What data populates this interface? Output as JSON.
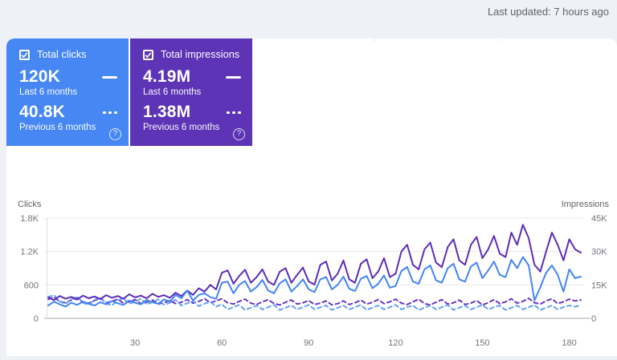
{
  "header": {
    "last_updated": "Last updated: 7 hours ago"
  },
  "cards": [
    {
      "label": "Total clicks",
      "checked": true,
      "color": "#4687f4",
      "current": {
        "value": "120K",
        "period": "Last 6 months"
      },
      "previous": {
        "value": "40.8K",
        "period": "Previous 6 months"
      },
      "help": "?"
    },
    {
      "label": "Total impressions",
      "checked": true,
      "color": "#5c34b5",
      "current": {
        "value": "4.19M",
        "period": "Last 6 months"
      },
      "previous": {
        "value": "1.38M",
        "period": "Previous 6 months"
      },
      "help": "?"
    }
  ],
  "chart_data": {
    "type": "line",
    "x_step_days": 2,
    "x_ticks": [
      30,
      60,
      90,
      120,
      150,
      180
    ],
    "left_axis": {
      "title": "Clicks",
      "ticks": [
        "1.8K",
        "1.2K",
        "600",
        "0"
      ],
      "max": 1800,
      "min": 0
    },
    "right_axis": {
      "title": "Impressions",
      "ticks": [
        "45K",
        "30K",
        "15K",
        "0"
      ],
      "max": 45000,
      "min": 0
    },
    "grid": true,
    "legend_position": "none",
    "series": [
      {
        "name": "Impressions - previous 6 months",
        "axis": "right",
        "style": "dashed",
        "color": "#6b35c4",
        "values": [
          8500,
          9500,
          7500,
          7000,
          8200,
          9200,
          7200,
          6800,
          8000,
          9000,
          7000,
          7600,
          8600,
          6800,
          7400,
          8400,
          6600,
          7200,
          8200,
          6400,
          7000,
          8000,
          6600,
          7200,
          8400,
          6800,
          7600,
          8800,
          7000,
          7800,
          8800,
          7000,
          6400,
          7600,
          8600,
          6800,
          6200,
          7400,
          8400,
          6600,
          6000,
          7200,
          8200,
          6400,
          7000,
          8000,
          6200,
          6800,
          7800,
          6000,
          6600,
          7800,
          6200,
          7000,
          8200,
          6400,
          7200,
          8400,
          6600,
          7400,
          8600,
          6800,
          6200,
          7400,
          8600,
          6600,
          6000,
          7200,
          8400,
          6400,
          7000,
          8200,
          6200,
          6800,
          8000,
          6000,
          7000,
          8400,
          6600,
          7400,
          8800,
          6800,
          7600,
          9000,
          7000,
          6400,
          7800,
          8800,
          6600,
          7400,
          8600,
          7800,
          8200
        ]
      },
      {
        "name": "Clicks - previous 6 months",
        "axis": "left",
        "style": "dashed",
        "color": "#66a0f5",
        "values": [
          380,
          420,
          300,
          260,
          340,
          390,
          280,
          240,
          330,
          380,
          270,
          230,
          320,
          360,
          260,
          300,
          350,
          250,
          290,
          340,
          240,
          280,
          330,
          230,
          270,
          310,
          220,
          260,
          300,
          210,
          250,
          160,
          200,
          240,
          150,
          190,
          230,
          160,
          200,
          240,
          150,
          190,
          230,
          160,
          200,
          240,
          160,
          200,
          230,
          150,
          190,
          230,
          160,
          200,
          240,
          150,
          190,
          230,
          160,
          200,
          240,
          160,
          200,
          230,
          150,
          190,
          230,
          160,
          200,
          240,
          150,
          190,
          230,
          160,
          200,
          240,
          160,
          200,
          230,
          150,
          190,
          230,
          160,
          200,
          240,
          150,
          190,
          230,
          160,
          200,
          230,
          210,
          230
        ]
      },
      {
        "name": "Impressions - last 6 months",
        "axis": "right",
        "style": "solid",
        "color": "#5c2db8",
        "values": [
          9500,
          8200,
          10000,
          8800,
          9600,
          8400,
          10200,
          9000,
          9800,
          8600,
          10400,
          9200,
          10000,
          8800,
          10800,
          9400,
          10200,
          9000,
          11000,
          9600,
          10400,
          9200,
          11500,
          10000,
          12500,
          10500,
          13500,
          12000,
          15000,
          13000,
          20500,
          21500,
          15500,
          19000,
          21800,
          16000,
          18500,
          22000,
          16500,
          15000,
          21000,
          22500,
          16000,
          19500,
          22800,
          16500,
          15200,
          24000,
          25500,
          17000,
          20000,
          26000,
          17500,
          16000,
          24500,
          26500,
          18000,
          21000,
          27000,
          18500,
          20000,
          30000,
          33000,
          24000,
          22000,
          31000,
          34000,
          25000,
          23000,
          32000,
          35500,
          26000,
          24000,
          33000,
          36500,
          27000,
          31000,
          37000,
          29000,
          27500,
          38500,
          33000,
          42000,
          36000,
          24000,
          21000,
          30000,
          38500,
          33000,
          26000,
          35500,
          31000,
          29500
        ]
      },
      {
        "name": "Clicks - last 6 months",
        "axis": "left",
        "style": "solid",
        "color": "#4285f4",
        "values": [
          230,
          300,
          250,
          210,
          280,
          240,
          300,
          260,
          230,
          290,
          250,
          310,
          270,
          240,
          320,
          280,
          250,
          330,
          290,
          260,
          340,
          300,
          420,
          360,
          500,
          320,
          420,
          450,
          380,
          350,
          640,
          660,
          450,
          600,
          670,
          480,
          560,
          690,
          500,
          450,
          630,
          700,
          480,
          580,
          700,
          520,
          470,
          700,
          740,
          520,
          600,
          750,
          530,
          490,
          710,
          760,
          540,
          620,
          770,
          550,
          580,
          850,
          920,
          660,
          620,
          880,
          950,
          680,
          640,
          900,
          980,
          700,
          660,
          930,
          1000,
          720,
          860,
          1020,
          780,
          740,
          1050,
          900,
          1100,
          950,
          320,
          560,
          820,
          950,
          780,
          480,
          880,
          720,
          750
        ]
      }
    ]
  }
}
